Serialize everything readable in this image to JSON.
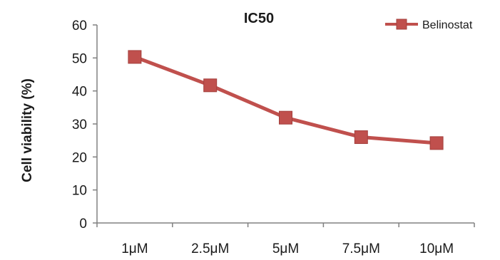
{
  "chart_data": {
    "type": "line",
    "title": "IC50",
    "xlabel": "",
    "ylabel": "Cell viability (%)",
    "categories": [
      "1μM",
      "2.5μM",
      "5μM",
      "7.5μM",
      "10μM"
    ],
    "series": [
      {
        "name": "Belinostat",
        "values": [
          50.3,
          41.7,
          31.9,
          26.0,
          24.2
        ]
      }
    ],
    "ylim": [
      0,
      60
    ],
    "yticks": [
      0,
      10,
      20,
      30,
      40,
      50,
      60
    ],
    "grid": false,
    "legend_position": "top-right",
    "colors": {
      "series": "#c0504d",
      "marker_edge": "#a33f3c",
      "axis": "#808080"
    }
  }
}
